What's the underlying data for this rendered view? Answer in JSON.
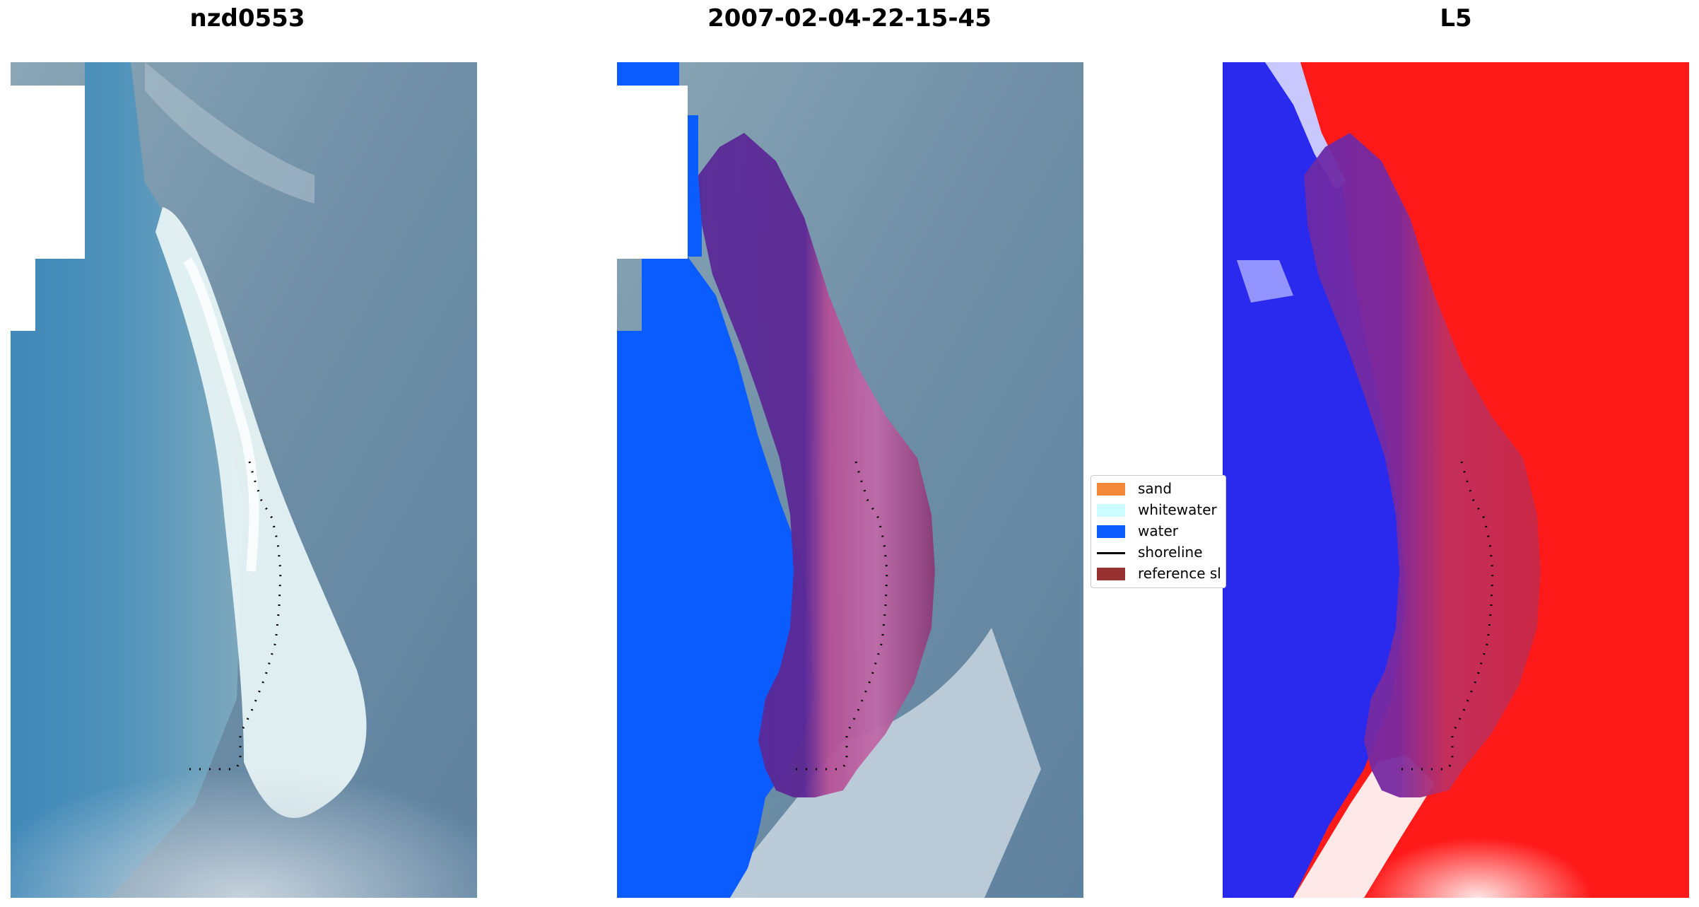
{
  "panels": [
    {
      "title": "nzd0553"
    },
    {
      "title": "2007-02-04-22-15-45"
    },
    {
      "title": "L5"
    }
  ],
  "legend": {
    "items": [
      {
        "label": "sand",
        "color": "#f5893a",
        "kind": "patch"
      },
      {
        "label": "whitewater",
        "color": "#ccfcff",
        "kind": "patch"
      },
      {
        "label": "water",
        "color": "#0a5cff",
        "kind": "patch"
      },
      {
        "label": "shoreline",
        "color": "#000000",
        "kind": "line"
      },
      {
        "label": "reference sl",
        "color": "#993030",
        "kind": "patch"
      }
    ]
  },
  "colors": {
    "sea": "#4e8fb8",
    "land": "#6f8fa5",
    "beach": "#e8f4f6",
    "water_class": "#0a5cff",
    "buffer": "#7a2a7a",
    "negative_index": "#1a1aff",
    "positive_index": "#ff1a1a"
  }
}
